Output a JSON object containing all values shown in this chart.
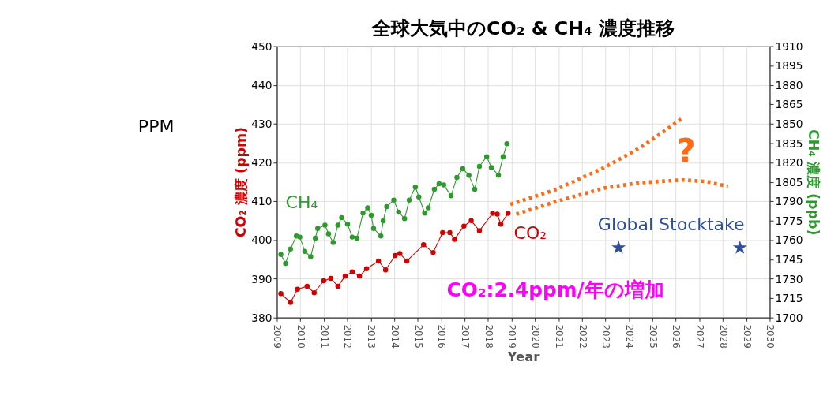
{
  "chart_data": {
    "type": "line",
    "title": "全球大気中のCO₂ & CH₄ 濃度推移",
    "xlabel": "Year",
    "ylabel": "CO₂ 濃度 (ppm)",
    "y2label": "CH₄ 濃度 (ppb)",
    "xlim": [
      2009,
      2030
    ],
    "xticks": [
      2009,
      2010,
      2011,
      2012,
      2013,
      2014,
      2015,
      2016,
      2017,
      2018,
      2019,
      2020,
      2021,
      2022,
      2023,
      2024,
      2025,
      2026,
      2027,
      2028,
      2029,
      2030
    ],
    "ylim": [
      380,
      450
    ],
    "yticks": [
      380,
      390,
      400,
      410,
      420,
      430,
      440,
      450
    ],
    "y2lim": [
      1700,
      1910
    ],
    "y2ticks": [
      1700,
      1715,
      1730,
      1745,
      1760,
      1775,
      1790,
      1805,
      1820,
      1835,
      1850,
      1865,
      1880,
      1895,
      1910
    ],
    "grid": true,
    "series": [
      {
        "name": "CO₂",
        "color": "#d40000",
        "marker": "circle",
        "line_style": "solid",
        "x": [
          2009.17,
          2009.58,
          2009.88,
          2010.29,
          2010.59,
          2011.0,
          2011.3,
          2011.6,
          2011.91,
          2012.21,
          2012.52,
          2012.82,
          2013.33,
          2013.63,
          2014.04,
          2014.24,
          2014.54,
          2015.25,
          2015.66,
          2016.06,
          2016.37,
          2016.57,
          2016.97,
          2017.28,
          2017.63,
          2018.19,
          2018.39,
          2018.54,
          2018.85
        ],
        "values": [
          386.2,
          383.9,
          387.3,
          388.1,
          386.4,
          389.5,
          390.1,
          388.1,
          390.7,
          391.8,
          390.7,
          392.6,
          394.6,
          392.3,
          396.0,
          396.5,
          394.6,
          398.8,
          396.8,
          401.9,
          401.9,
          400.2,
          403.6,
          405.0,
          402.4,
          406.9,
          406.7,
          404.1,
          406.9
        ]
      },
      {
        "name": "CH₄",
        "color": "#2e9a2e",
        "marker": "circle",
        "line_style": "solid",
        "axis": "y2",
        "x": [
          2009.17,
          2009.37,
          2009.58,
          2009.83,
          2009.98,
          2010.19,
          2010.44,
          2010.64,
          2010.74,
          2011.05,
          2011.2,
          2011.4,
          2011.6,
          2011.76,
          2012.01,
          2012.21,
          2012.41,
          2012.67,
          2012.87,
          2013.02,
          2013.12,
          2013.43,
          2013.53,
          2013.68,
          2013.98,
          2014.19,
          2014.44,
          2014.64,
          2014.9,
          2015.05,
          2015.3,
          2015.45,
          2015.71,
          2015.91,
          2016.11,
          2016.42,
          2016.67,
          2016.92,
          2017.18,
          2017.43,
          2017.63,
          2017.94,
          2018.14,
          2018.44,
          2018.64,
          2018.8
        ],
        "values": [
          1748.8,
          1742.0,
          1753.0,
          1763.1,
          1762.3,
          1751.3,
          1747.1,
          1761.4,
          1769.0,
          1771.5,
          1764.8,
          1758.1,
          1771.5,
          1777.4,
          1772.3,
          1762.3,
          1761.4,
          1780.8,
          1785.0,
          1779.1,
          1769.0,
          1763.1,
          1774.9,
          1785.8,
          1790.9,
          1781.6,
          1776.6,
          1790.9,
          1801.0,
          1793.4,
          1780.8,
          1785.0,
          1799.3,
          1803.5,
          1802.7,
          1794.2,
          1808.5,
          1815.2,
          1810.2,
          1799.3,
          1817.0,
          1824.5,
          1816.1,
          1810.2,
          1824.5,
          1834.6
        ]
      },
      {
        "color": "#ff6a13",
        "marker": "none",
        "line_style": "dotted",
        "x": [
          2018.95,
          2020.92,
          2022.95,
          2024.47,
          2025.48,
          2026.24
        ],
        "values": [
          409.2,
          413.1,
          418.7,
          423.8,
          428.0,
          431.3
        ]
      },
      {
        "color": "#ff6a13",
        "marker": "none",
        "line_style": "dotted",
        "x": [
          2019.2,
          2020.92,
          2022.95,
          2024.47,
          2026.29,
          2027.31,
          2028.22
        ],
        "values": [
          406.7,
          410.0,
          413.4,
          414.8,
          415.5,
          415.1,
          413.8
        ]
      },
      {
        "type": "scatter",
        "color": "#2f4f9a",
        "marker": "star",
        "x": [
          2023.56,
          2028.73
        ],
        "values": [
          398.0,
          398.0
        ]
      }
    ],
    "annotations": [
      "Global Stocktake",
      "?",
      "CO₂:2.4ppm/年の増加",
      "PPM"
    ]
  }
}
